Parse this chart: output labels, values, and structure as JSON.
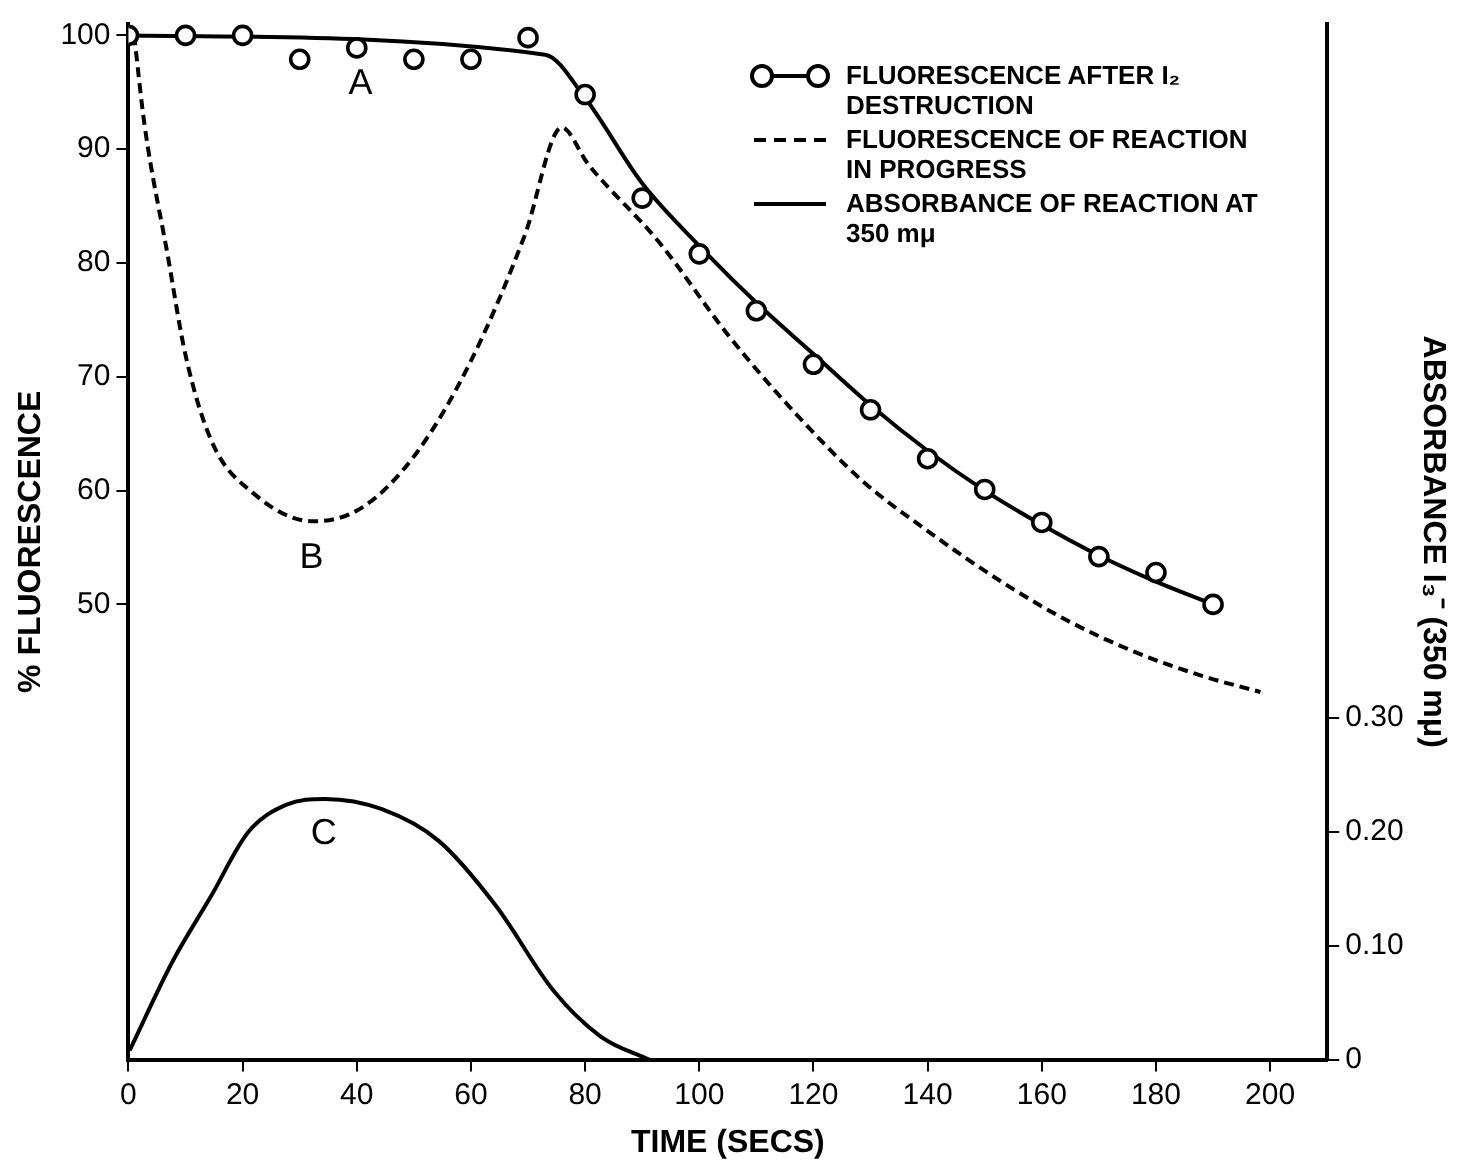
{
  "chart_data": {
    "type": "line",
    "xlabel": "TIME (SECS)",
    "ylabel": "% FLUORESCENCE",
    "y2label": "ABSORBANCE I₃⁻ (350 mμ)",
    "xlim": [
      0,
      210
    ],
    "xticks": [
      0,
      20,
      40,
      60,
      80,
      100,
      120,
      140,
      160,
      180,
      200
    ],
    "ylim": [
      10,
      101
    ],
    "yticks": [
      50,
      60,
      70,
      80,
      90,
      100
    ],
    "y2lim": [
      0,
      0.91
    ],
    "y2ticks": [
      0,
      {
        "value": 0.1,
        "label": "0.10"
      },
      {
        "value": 0.2,
        "label": "0.20"
      },
      {
        "value": 0.3,
        "label": "0.30"
      }
    ],
    "grid": false,
    "legend": "top right",
    "series": [
      {
        "type": "scatter",
        "name": "FLUORESCENCE AFTER I₂ DESTRUCTION",
        "color": "#000000",
        "marker": "circle",
        "x": [
          0,
          10,
          20,
          30,
          40,
          50,
          60,
          70,
          80,
          90,
          100,
          110,
          120,
          130,
          140,
          150,
          160,
          170,
          180,
          190
        ],
        "values": [
          100,
          100,
          100,
          97.9,
          98.9,
          97.9,
          97.9,
          99.8,
          94.8,
          85.7,
          80.8,
          75.8,
          71.1,
          67.1,
          62.8,
          60.1,
          57.2,
          54.2,
          52.8,
          50
        ]
      },
      {
        "color": "#000000",
        "line_style": "solid",
        "x": [
          0,
          73,
          80,
          90,
          100,
          110,
          120,
          130,
          140,
          150,
          160,
          170,
          180,
          190
        ],
        "values": [
          100,
          98.3,
          94.5,
          87,
          81.5,
          76.5,
          72,
          67.5,
          63.5,
          60,
          57,
          54.3,
          52,
          50
        ]
      },
      {
        "name": "FLUORESCENCE OF REACTION IN PROGRESS",
        "color": "#000000",
        "line_style": "dashed",
        "x": [
          1,
          2.8,
          6.9,
          10,
          14.6,
          21.8,
          32.4,
          40.9,
          50.3,
          59.9,
          69.4,
          75.9,
          80.5,
          93,
          105,
          117,
          128.7,
          140.7,
          152.6,
          164.4,
          176.4,
          188.2,
          198.3
        ],
        "values": [
          100,
          92.2,
          80.6,
          71.9,
          64.3,
          59.8,
          57.3,
          58.5,
          63.2,
          71.3,
          82.4,
          91.9,
          88.7,
          81.8,
          73.7,
          66.7,
          60.8,
          56.2,
          52.1,
          48.6,
          45.8,
          43.7,
          42.3
        ]
      },
      {
        "name": "ABSORBANCE OF REACTION AT 350 mμ",
        "color": "#000000",
        "line_style": "solid",
        "axis": "y2",
        "x": [
          0.2,
          7.7,
          14.4,
          21,
          27.7,
          34.4,
          44.4,
          54.4,
          64.4,
          74.4,
          82.8,
          91.2
        ],
        "values": [
          0.008,
          0.086,
          0.143,
          0.2,
          0.224,
          0.229,
          0.22,
          0.192,
          0.135,
          0.061,
          0.02,
          0
        ]
      }
    ],
    "annotations": [
      {
        "text": "A",
        "x": 41,
        "y": 98.9
      },
      {
        "text": "B",
        "x": 32.4,
        "y": 57.3
      },
      {
        "text": "C",
        "x": 34.4,
        "y": 32.9
      }
    ]
  }
}
